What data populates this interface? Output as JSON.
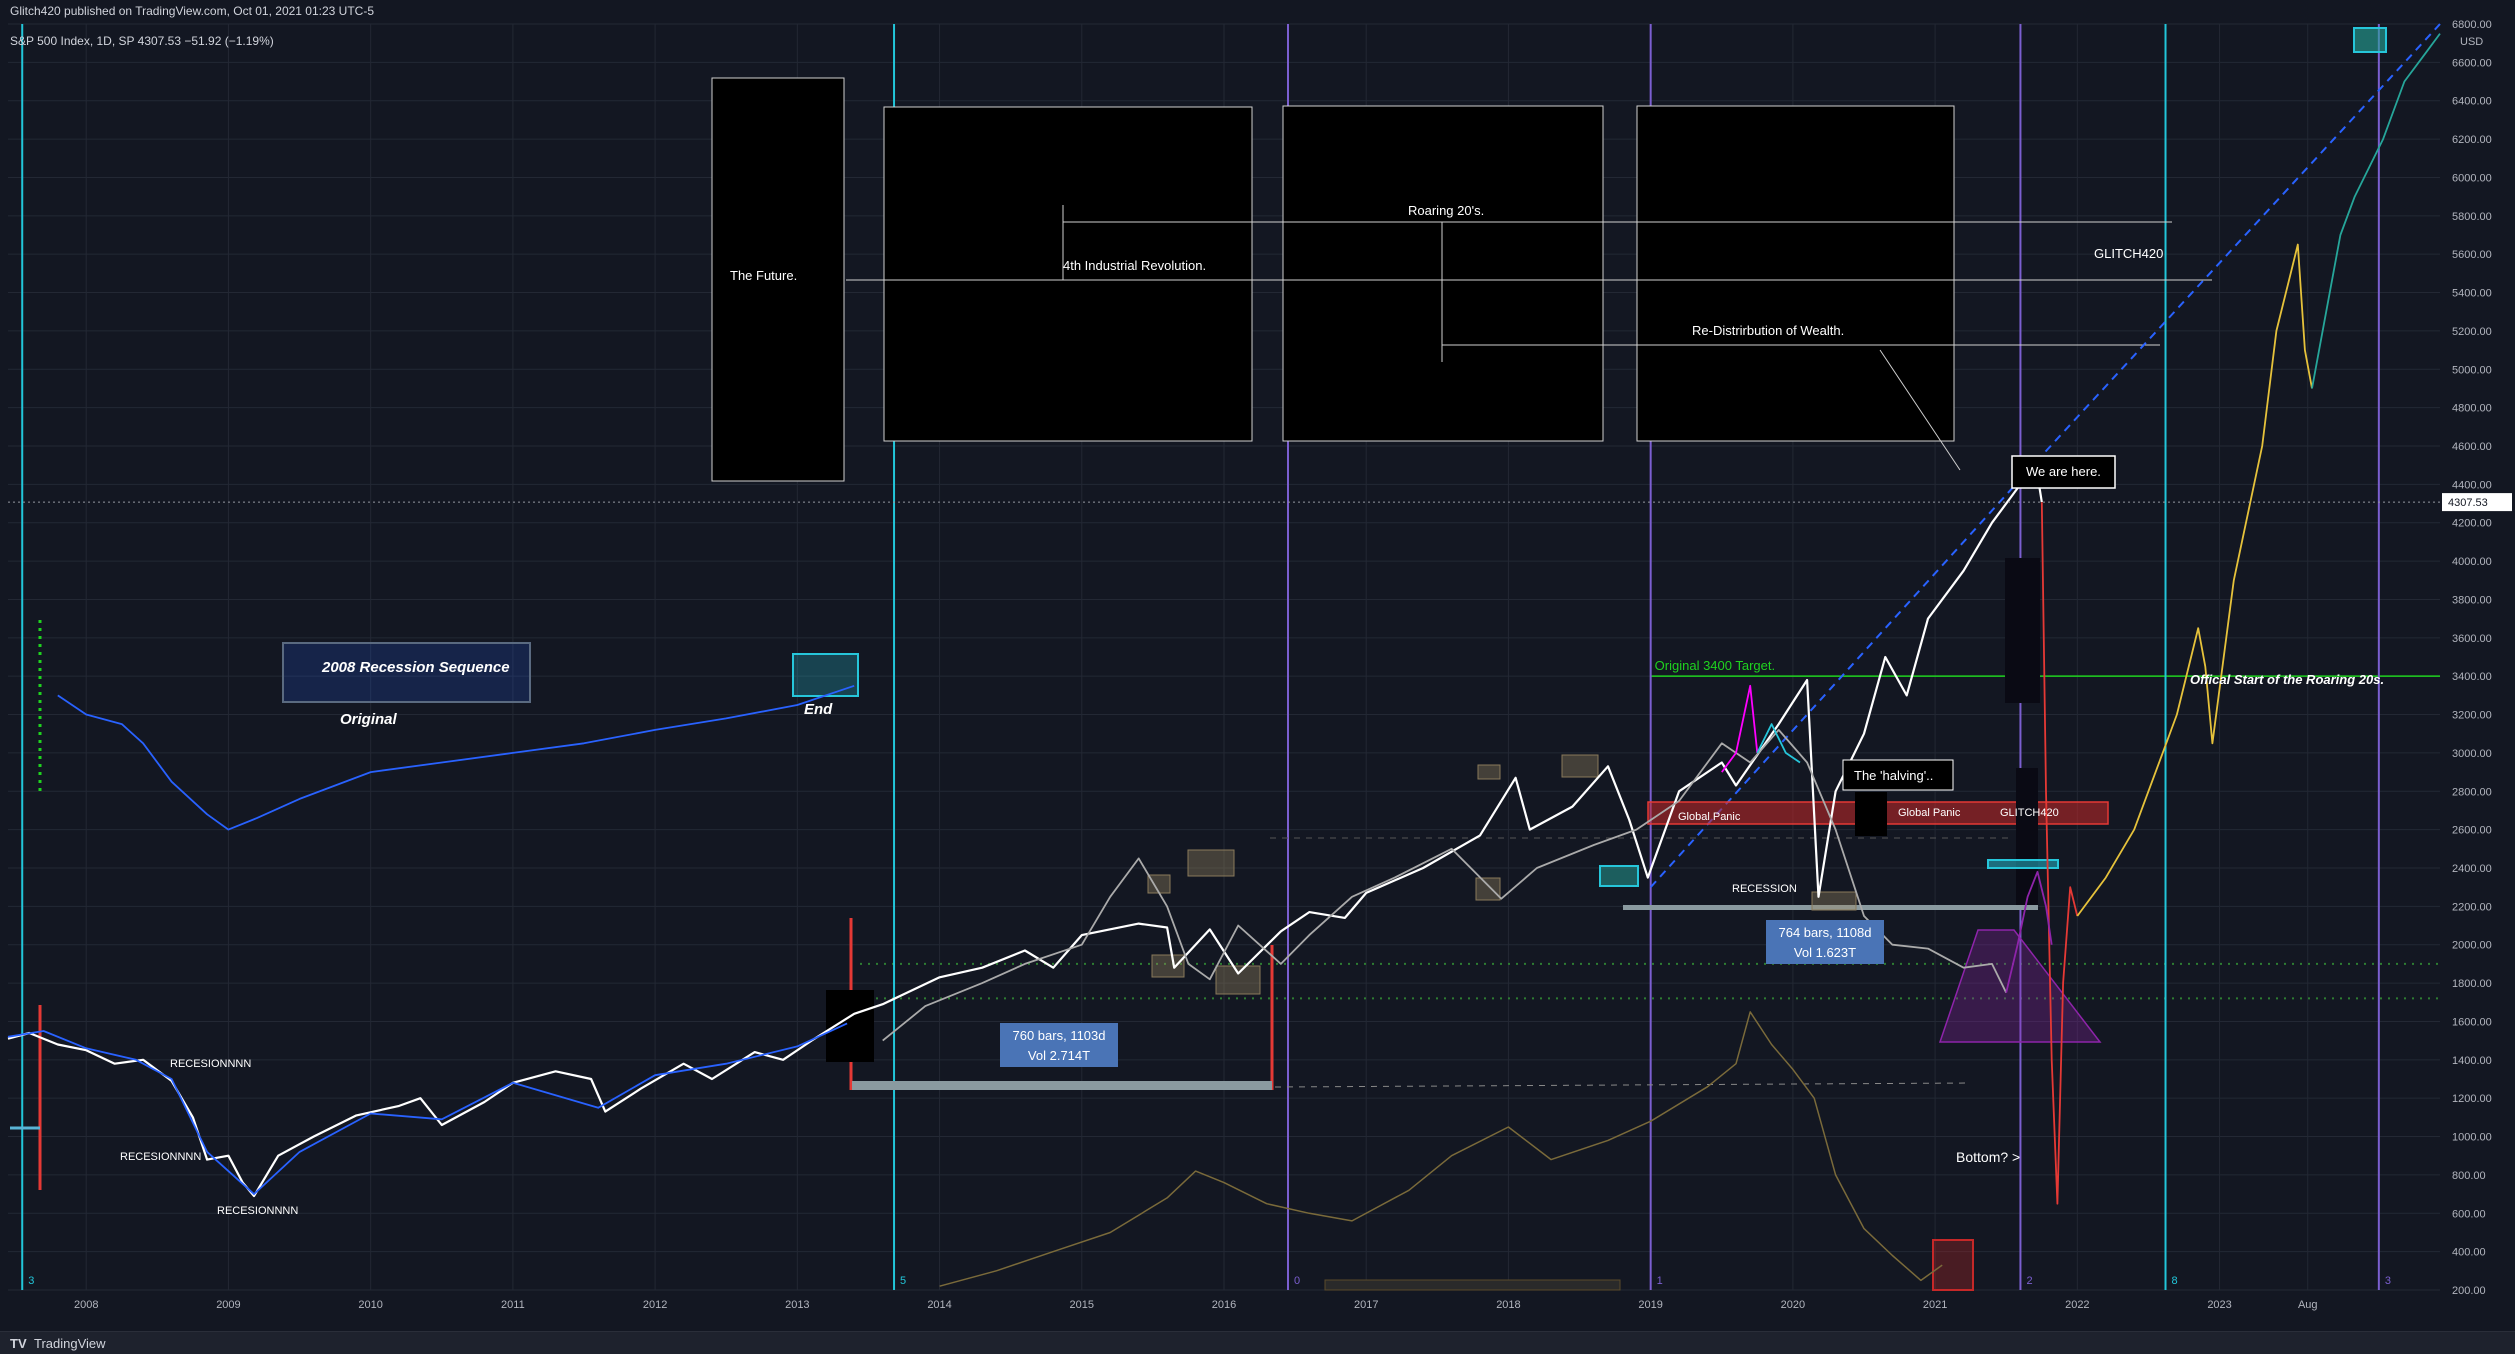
{
  "header": {
    "publisher": "Glitch420 published on TradingView.com, Oct 01, 2021 01:23 UTC-5",
    "symbol_line": "S&P 500 Index, 1D, SP  4307.53  −51.92 (−1.19%)"
  },
  "footer": {
    "brand": "TradingView"
  },
  "colors": {
    "background": "#131722",
    "grid": "#232834",
    "price_line": "#ffffff",
    "overlay_line": "#2962ff",
    "projection_yellow": "#e6c23b",
    "projection_teal": "#26a69a",
    "cycle_cyan": "#22c6d9",
    "cycle_purple": "#7b5fd0",
    "green_level": "#1fd31f",
    "red_zone": "#c62828",
    "label_blue": "#4a74b6"
  },
  "chart_data": {
    "type": "line",
    "title": "",
    "price_axis": {
      "unit": "USD",
      "ylim": [
        200,
        6800
      ],
      "ticks": [
        200,
        400,
        600,
        800,
        1000,
        1200,
        1400,
        1600,
        1800,
        2000,
        2200,
        2400,
        2600,
        2800,
        3000,
        3200,
        3400,
        3600,
        3800,
        4000,
        4200,
        4400,
        4600,
        4800,
        5000,
        5200,
        5400,
        5600,
        5800,
        6000,
        6200,
        6400,
        6600,
        6800
      ],
      "last_price": "4307.53"
    },
    "time_axis": {
      "xlim": [
        2007.45,
        2024.55
      ],
      "ticks": [
        {
          "t": 2008.0,
          "label": "2008"
        },
        {
          "t": 2009.0,
          "label": "2009"
        },
        {
          "t": 2010.0,
          "label": "2010"
        },
        {
          "t": 2011.0,
          "label": "2011"
        },
        {
          "t": 2012.0,
          "label": "2012"
        },
        {
          "t": 2013.0,
          "label": "2013"
        },
        {
          "t": 2014.0,
          "label": "2014"
        },
        {
          "t": 2015.0,
          "label": "2015"
        },
        {
          "t": 2016.0,
          "label": "2016"
        },
        {
          "t": 2017.0,
          "label": "2017"
        },
        {
          "t": 2018.0,
          "label": "2018"
        },
        {
          "t": 2019.0,
          "label": "2019"
        },
        {
          "t": 2020.0,
          "label": "2020"
        },
        {
          "t": 2021.0,
          "label": "2021"
        },
        {
          "t": 2022.0,
          "label": "2022"
        },
        {
          "t": 2023.0,
          "label": "2023"
        },
        {
          "t": 2023.62,
          "label": "Aug"
        }
      ]
    },
    "series": [
      {
        "name": "",
        "role": "price",
        "color": "#ffffff",
        "points": [
          [
            2007.45,
            1510
          ],
          [
            2007.6,
            1540
          ],
          [
            2007.8,
            1480
          ],
          [
            2008.0,
            1450
          ],
          [
            2008.2,
            1380
          ],
          [
            2008.4,
            1400
          ],
          [
            2008.6,
            1290
          ],
          [
            2008.75,
            1100
          ],
          [
            2008.85,
            880
          ],
          [
            2009.0,
            900
          ],
          [
            2009.1,
            760
          ],
          [
            2009.18,
            690
          ],
          [
            2009.35,
            900
          ],
          [
            2009.6,
            1000
          ],
          [
            2009.9,
            1110
          ],
          [
            2010.2,
            1160
          ],
          [
            2010.35,
            1200
          ],
          [
            2010.5,
            1060
          ],
          [
            2010.8,
            1180
          ],
          [
            2011.0,
            1280
          ],
          [
            2011.3,
            1340
          ],
          [
            2011.55,
            1300
          ],
          [
            2011.65,
            1130
          ],
          [
            2011.9,
            1250
          ],
          [
            2012.2,
            1380
          ],
          [
            2012.4,
            1300
          ],
          [
            2012.7,
            1440
          ],
          [
            2012.9,
            1400
          ],
          [
            2013.1,
            1500
          ],
          [
            2013.4,
            1640
          ],
          [
            2013.6,
            1690
          ],
          [
            2013.8,
            1760
          ],
          [
            2014.0,
            1830
          ],
          [
            2014.3,
            1880
          ],
          [
            2014.6,
            1970
          ],
          [
            2014.8,
            1880
          ],
          [
            2015.0,
            2050
          ],
          [
            2015.4,
            2110
          ],
          [
            2015.6,
            2090
          ],
          [
            2015.65,
            1880
          ],
          [
            2015.9,
            2080
          ],
          [
            2016.1,
            1850
          ],
          [
            2016.4,
            2070
          ],
          [
            2016.6,
            2170
          ],
          [
            2016.85,
            2140
          ],
          [
            2017.0,
            2270
          ],
          [
            2017.4,
            2400
          ],
          [
            2017.8,
            2570
          ],
          [
            2018.05,
            2870
          ],
          [
            2018.15,
            2600
          ],
          [
            2018.45,
            2720
          ],
          [
            2018.7,
            2930
          ],
          [
            2018.85,
            2650
          ],
          [
            2018.98,
            2350
          ],
          [
            2019.2,
            2800
          ],
          [
            2019.5,
            2950
          ],
          [
            2019.6,
            2830
          ],
          [
            2019.9,
            3150
          ],
          [
            2020.1,
            3380
          ],
          [
            2020.18,
            2250
          ],
          [
            2020.3,
            2800
          ],
          [
            2020.5,
            3100
          ],
          [
            2020.65,
            3500
          ],
          [
            2020.8,
            3300
          ],
          [
            2020.95,
            3700
          ],
          [
            2021.2,
            3950
          ],
          [
            2021.4,
            4200
          ],
          [
            2021.6,
            4400
          ],
          [
            2021.7,
            4540
          ],
          [
            2021.75,
            4307.53
          ]
        ]
      },
      {
        "name": "",
        "role": "overlay_2008_cycle",
        "color": "#2962ff",
        "points": [
          [
            2007.45,
            1520
          ],
          [
            2007.7,
            1550
          ],
          [
            2008.0,
            1460
          ],
          [
            2008.35,
            1400
          ],
          [
            2008.6,
            1300
          ],
          [
            2008.85,
            920
          ],
          [
            2009.18,
            700
          ],
          [
            2009.5,
            920
          ],
          [
            2010.0,
            1120
          ],
          [
            2010.5,
            1090
          ],
          [
            2011.0,
            1280
          ],
          [
            2011.6,
            1150
          ],
          [
            2012.0,
            1320
          ],
          [
            2012.5,
            1380
          ],
          [
            2013.0,
            1470
          ],
          [
            2013.35,
            1590
          ]
        ]
      },
      {
        "name": "",
        "role": "original_mini",
        "color": "#2962ff",
        "points": [
          [
            2007.8,
            3300
          ],
          [
            2008.0,
            3200
          ],
          [
            2008.25,
            3150
          ],
          [
            2008.4,
            3050
          ],
          [
            2008.6,
            2850
          ],
          [
            2008.85,
            2680
          ],
          [
            2009.0,
            2600
          ],
          [
            2009.2,
            2660
          ],
          [
            2009.5,
            2760
          ],
          [
            2010.0,
            2900
          ],
          [
            2010.5,
            2950
          ],
          [
            2011.0,
            3000
          ],
          [
            2011.5,
            3050
          ],
          [
            2012.0,
            3120
          ],
          [
            2012.5,
            3180
          ],
          [
            2013.0,
            3250
          ],
          [
            2013.4,
            3350
          ]
        ]
      },
      {
        "name": "",
        "role": "ghost_copy",
        "color": "#aaaaaa",
        "points": [
          [
            2013.6,
            1500
          ],
          [
            2013.9,
            1680
          ],
          [
            2014.3,
            1800
          ],
          [
            2014.6,
            1900
          ],
          [
            2015.0,
            2000
          ],
          [
            2015.2,
            2250
          ],
          [
            2015.4,
            2450
          ],
          [
            2015.6,
            2200
          ],
          [
            2015.75,
            1900
          ],
          [
            2015.9,
            1820
          ],
          [
            2016.1,
            2100
          ],
          [
            2016.4,
            1900
          ],
          [
            2016.6,
            2050
          ],
          [
            2016.9,
            2250
          ],
          [
            2017.2,
            2350
          ],
          [
            2017.6,
            2500
          ],
          [
            2017.95,
            2240
          ],
          [
            2018.2,
            2400
          ],
          [
            2018.6,
            2520
          ],
          [
            2018.9,
            2600
          ],
          [
            2019.2,
            2750
          ],
          [
            2019.5,
            3050
          ],
          [
            2019.7,
            2950
          ],
          [
            2019.9,
            3120
          ],
          [
            2020.1,
            2950
          ],
          [
            2020.3,
            2600
          ],
          [
            2020.5,
            2150
          ],
          [
            2020.7,
            2000
          ],
          [
            2020.95,
            1980
          ],
          [
            2021.2,
            1880
          ],
          [
            2021.4,
            1900
          ],
          [
            2021.5,
            1750
          ]
        ]
      },
      {
        "name": "",
        "role": "magenta_segment",
        "color": "#ff00ff",
        "points": [
          [
            2019.5,
            2900
          ],
          [
            2019.6,
            3000
          ],
          [
            2019.7,
            3350
          ],
          [
            2019.75,
            3000
          ]
        ]
      },
      {
        "name": "",
        "role": "cyan_segment",
        "color": "#26c6da",
        "points": [
          [
            2019.75,
            3000
          ],
          [
            2019.85,
            3150
          ],
          [
            2019.95,
            3000
          ],
          [
            2020.05,
            2950
          ]
        ]
      },
      {
        "name": "",
        "role": "volume_like_yellow",
        "color": "#7a6a3a",
        "points": [
          [
            2014.0,
            220
          ],
          [
            2014.4,
            300
          ],
          [
            2014.8,
            400
          ],
          [
            2015.2,
            500
          ],
          [
            2015.6,
            680
          ],
          [
            2015.8,
            820
          ],
          [
            2016.0,
            760
          ],
          [
            2016.3,
            650
          ],
          [
            2016.6,
            600
          ],
          [
            2016.9,
            560
          ],
          [
            2017.3,
            720
          ],
          [
            2017.6,
            900
          ],
          [
            2018.0,
            1050
          ],
          [
            2018.3,
            880
          ],
          [
            2018.7,
            980
          ],
          [
            2019.0,
            1080
          ],
          [
            2019.4,
            1260
          ],
          [
            2019.6,
            1380
          ],
          [
            2019.7,
            1650
          ],
          [
            2019.85,
            1480
          ],
          [
            2020.0,
            1350
          ],
          [
            2020.15,
            1200
          ],
          [
            2020.3,
            800
          ],
          [
            2020.5,
            520
          ],
          [
            2020.7,
            380
          ],
          [
            2020.9,
            250
          ],
          [
            2021.05,
            330
          ]
        ]
      },
      {
        "name": "",
        "role": "crash_projection_red",
        "color": "#e53935",
        "points": [
          [
            2021.75,
            4307
          ],
          [
            2021.78,
            2800
          ],
          [
            2021.82,
            1400
          ],
          [
            2021.86,
            650
          ],
          [
            2021.9,
            1800
          ],
          [
            2021.95,
            2300
          ],
          [
            2022.0,
            2150
          ]
        ]
      },
      {
        "name": "",
        "role": "purple_projection",
        "color": "#8e24aa",
        "points": [
          [
            2021.5,
            1750
          ],
          [
            2021.58,
            2000
          ],
          [
            2021.65,
            2250
          ],
          [
            2021.72,
            2380
          ],
          [
            2021.78,
            2200
          ],
          [
            2021.82,
            2000
          ]
        ]
      },
      {
        "name": "",
        "role": "future_projection_yellow",
        "color": "#e6c23b",
        "points": [
          [
            2022.0,
            2150
          ],
          [
            2022.2,
            2350
          ],
          [
            2022.4,
            2600
          ],
          [
            2022.6,
            3000
          ],
          [
            2022.7,
            3200
          ],
          [
            2022.8,
            3500
          ],
          [
            2022.85,
            3650
          ],
          [
            2022.9,
            3450
          ],
          [
            2022.95,
            3050
          ],
          [
            2023.1,
            3900
          ],
          [
            2023.3,
            4600
          ],
          [
            2023.4,
            5200
          ],
          [
            2023.5,
            5500
          ],
          [
            2023.55,
            5650
          ],
          [
            2023.6,
            5100
          ],
          [
            2023.65,
            4900
          ]
        ]
      },
      {
        "name": "",
        "role": "future_projection_teal",
        "color": "#26a69a",
        "points": [
          [
            2023.65,
            4900
          ],
          [
            2023.75,
            5300
          ],
          [
            2023.85,
            5700
          ],
          [
            2023.95,
            5900
          ],
          [
            2024.05,
            6050
          ],
          [
            2024.15,
            6200
          ],
          [
            2024.3,
            6500
          ],
          [
            2024.45,
            6650
          ],
          [
            2024.55,
            6750
          ]
        ]
      }
    ],
    "green_level": {
      "value": 3400,
      "label": "Original 3400 Target."
    },
    "dotted_green_levels": [
      1900,
      1720
    ],
    "dashed_blue_trend": [
      [
        2019.0,
        2300
      ],
      [
        2021.75,
        4550
      ],
      [
        2024.55,
        6800
      ]
    ],
    "vertical_cycles": [
      {
        "t": 2007.55,
        "color": "cyan",
        "label": "3"
      },
      {
        "t": 2013.68,
        "color": "cyan",
        "label": "5"
      },
      {
        "t": 2016.45,
        "color": "purple",
        "label": "0"
      },
      {
        "t": 2019.0,
        "color": "purple",
        "label": "1"
      },
      {
        "t": 2021.6,
        "color": "purple",
        "label": "2"
      },
      {
        "t": 2022.62,
        "color": "cyan",
        "label": "8"
      },
      {
        "t": 2024.12,
        "color": "purple",
        "label": "3"
      }
    ],
    "annotations": [
      {
        "text": "The Future."
      },
      {
        "text": "4th Industrial Revolution."
      },
      {
        "text": "Roaring 20's."
      },
      {
        "text": "Re-Distrirbution of Wealth."
      },
      {
        "text": "We are here."
      },
      {
        "text": "GLITCH420"
      },
      {
        "text": "Offical Start of the Roaring 20s."
      },
      {
        "text": "2008 Recession Sequence"
      },
      {
        "text": "Original"
      },
      {
        "text": "End"
      },
      {
        "text": "The 'halving'.."
      },
      {
        "text": "Global Panic"
      },
      {
        "text": "Global Panic"
      },
      {
        "text": "GLITCH420"
      },
      {
        "text": "RECESSION"
      },
      {
        "text": "RECESIONNNN"
      },
      {
        "text": "RECESIONNNN"
      },
      {
        "text": "RECESIONNNN"
      },
      {
        "text": "Bottom? >"
      }
    ],
    "measure_boxes": [
      {
        "line1": "760 bars, 1103d",
        "line2": "Vol 2.714T"
      },
      {
        "line1": "764 bars, 1108d",
        "line2": "Vol 1.623T"
      }
    ]
  }
}
